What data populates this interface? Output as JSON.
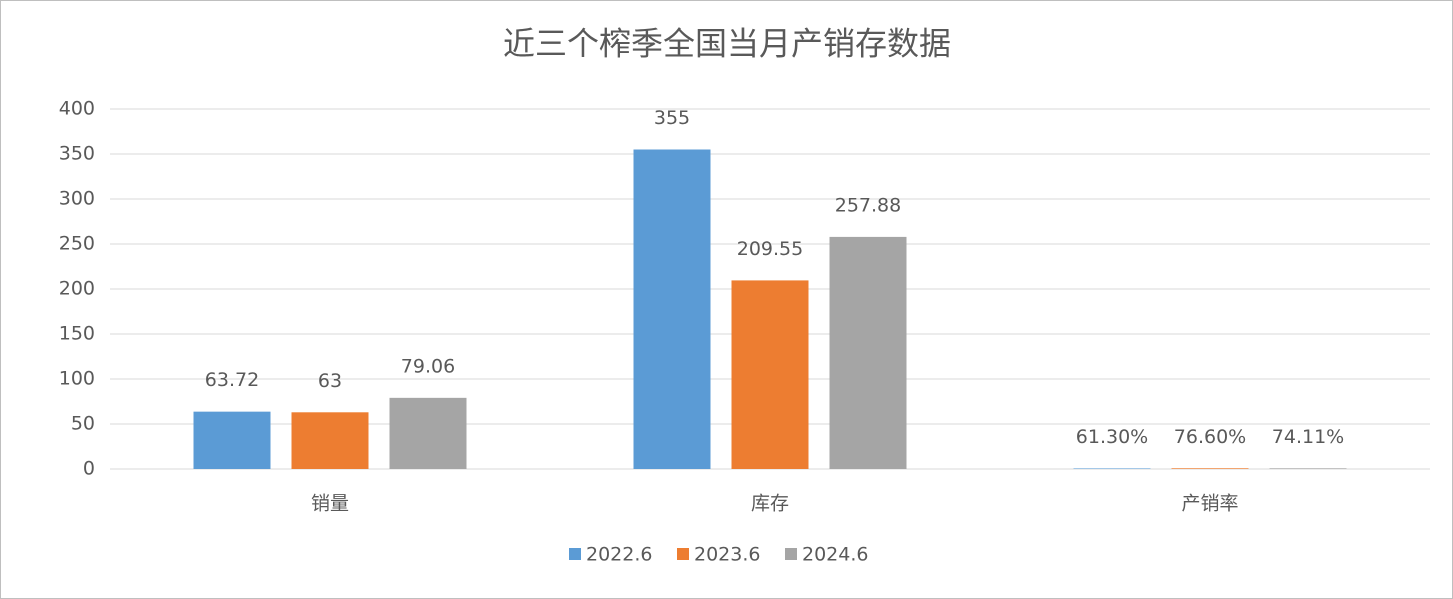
{
  "chart_data": {
    "type": "bar",
    "title": "近三个榨季全国当月产销存数据",
    "categories": [
      "销量",
      "库存",
      "产销率"
    ],
    "series": [
      {
        "name": "2022.6",
        "color": "#5b9bd5",
        "values": [
          63.72,
          355,
          0.613
        ],
        "value_labels": [
          "63.72",
          "355",
          "61.30%"
        ]
      },
      {
        "name": "2023.6",
        "color": "#ed7d31",
        "values": [
          63,
          209.55,
          0.766
        ],
        "value_labels": [
          "63",
          "209.55",
          "76.60%"
        ]
      },
      {
        "name": "2024.6",
        "color": "#a5a5a5",
        "values": [
          79.06,
          257.88,
          0.7411
        ],
        "value_labels": [
          "79.06",
          "257.88",
          "74.11%"
        ]
      }
    ],
    "ylim": [
      0,
      400
    ],
    "yticks": [
      0,
      50,
      100,
      150,
      200,
      250,
      300,
      350,
      400
    ],
    "grid": true,
    "legend": "bottom"
  }
}
